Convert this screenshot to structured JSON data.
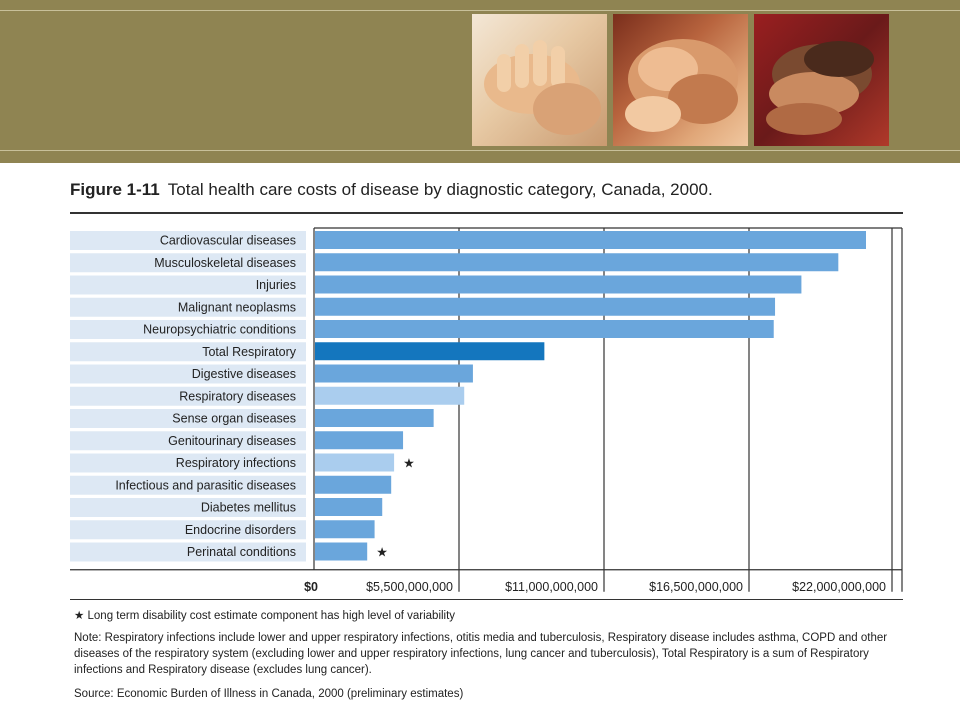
{
  "figure": {
    "number": "Figure 1-11",
    "title": "Total health care costs of disease by diagnostic category, Canada, 2000."
  },
  "colors": {
    "banner": "#8f8452",
    "bar_default": "#6aa6dc",
    "bar_total_respiratory": "#1476be",
    "bar_respiratory_components": "#aacdee",
    "label_band": "#dde8f4"
  },
  "chart_data": {
    "type": "bar",
    "orientation": "horizontal",
    "categories": [
      "Cardiovascular diseases",
      "Musculoskeletal diseases",
      "Injuries",
      "Malignant neoplasms",
      "Neuropsychiatric conditions",
      "Total Respiratory",
      "Digestive diseases",
      "Respiratory diseases",
      "Sense organ diseases",
      "Genitourinary diseases",
      "Respiratory infections",
      "Infectious and parasitic diseases",
      "Diabetes mellitus",
      "Endocrine disorders",
      "Perinatal conditions"
    ],
    "values": [
      20900000000,
      19850000000,
      18450000000,
      17450000000,
      17400000000,
      8700000000,
      5990000000,
      5660000000,
      4500000000,
      3340000000,
      3000000000,
      2890000000,
      2550000000,
      2260000000,
      1980000000
    ],
    "bar_colors": [
      "#6aa6dc",
      "#6aa6dc",
      "#6aa6dc",
      "#6aa6dc",
      "#6aa6dc",
      "#1476be",
      "#6aa6dc",
      "#aacdee",
      "#6aa6dc",
      "#6aa6dc",
      "#aacdee",
      "#6aa6dc",
      "#6aa6dc",
      "#6aa6dc",
      "#6aa6dc"
    ],
    "markers": [
      "",
      "",
      "",
      "",
      "",
      "",
      "",
      "",
      "",
      "",
      "*",
      "",
      "",
      "",
      "*"
    ],
    "xlim": [
      0,
      22000000000
    ],
    "xticks": [
      0,
      5500000000,
      11000000000,
      16500000000,
      22000000000
    ],
    "xtick_labels": [
      "$0",
      "$5,500,000,000",
      "$11,000,000,000",
      "$16,500,000,000",
      "$22,000,000,000"
    ],
    "grid": true
  },
  "footnotes": {
    "asterisk": "★ Long term disability cost estimate component has high level of variability",
    "note": "Note: Respiratory infections include lower and upper respiratory infections, otitis media and tuberculosis, Respiratory disease includes asthma, COPD and other diseases of the respiratory system (excluding lower and upper respiratory infections, lung cancer and tuberculosis), Total Respiratory is a sum of Respiratory infections and Respiratory disease (excludes lung cancer).",
    "source": "Source: Economic Burden of Illness in Canada, 2000 (preliminary estimates)"
  }
}
